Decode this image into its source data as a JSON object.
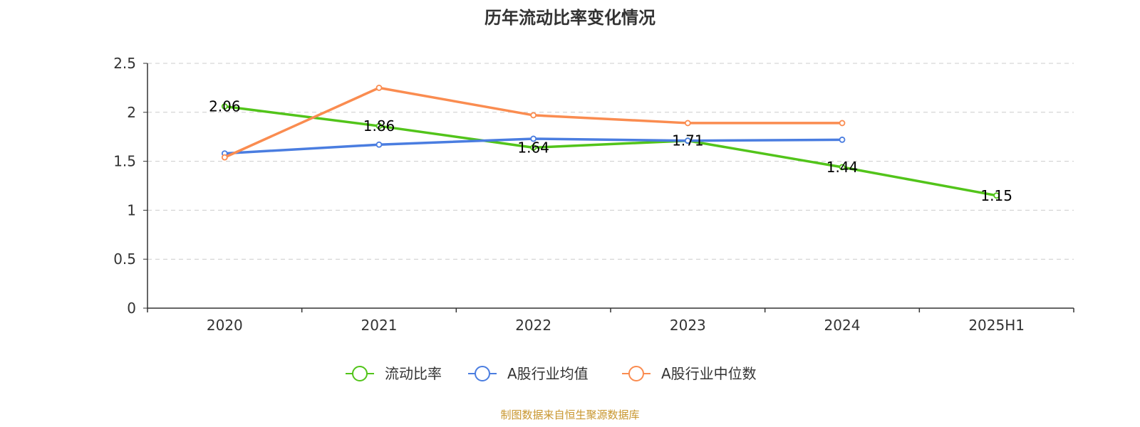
{
  "chart_data": {
    "type": "line",
    "title": "历年流动比率变化情况",
    "xlabel": "",
    "ylabel": "",
    "categories": [
      "2020",
      "2021",
      "2022",
      "2023",
      "2024",
      "2025H1"
    ],
    "y_ticks": [
      "0",
      "0.5",
      "1",
      "1.5",
      "2",
      "2.5"
    ],
    "ylim": [
      0,
      2.5
    ],
    "grid": "horizontal dashed",
    "legend_position": "bottom",
    "series": [
      {
        "name": "流动比率",
        "color": "#52c41a",
        "values": [
          2.06,
          1.86,
          1.64,
          1.71,
          1.44,
          1.15
        ],
        "labels": [
          "2.06",
          "1.86",
          "1.64",
          "1.71",
          "1.44",
          "1.15"
        ],
        "show_labels": true
      },
      {
        "name": "A股行业均值",
        "color": "#4a7de0",
        "values": [
          1.58,
          1.67,
          1.73,
          1.71,
          1.72,
          null
        ],
        "show_labels": false
      },
      {
        "name": "A股行业中位数",
        "color": "#fa8c50",
        "values": [
          1.54,
          2.25,
          1.97,
          1.89,
          1.89,
          null
        ],
        "show_labels": false
      }
    ],
    "source": "制图数据来自恒生聚源数据库"
  }
}
